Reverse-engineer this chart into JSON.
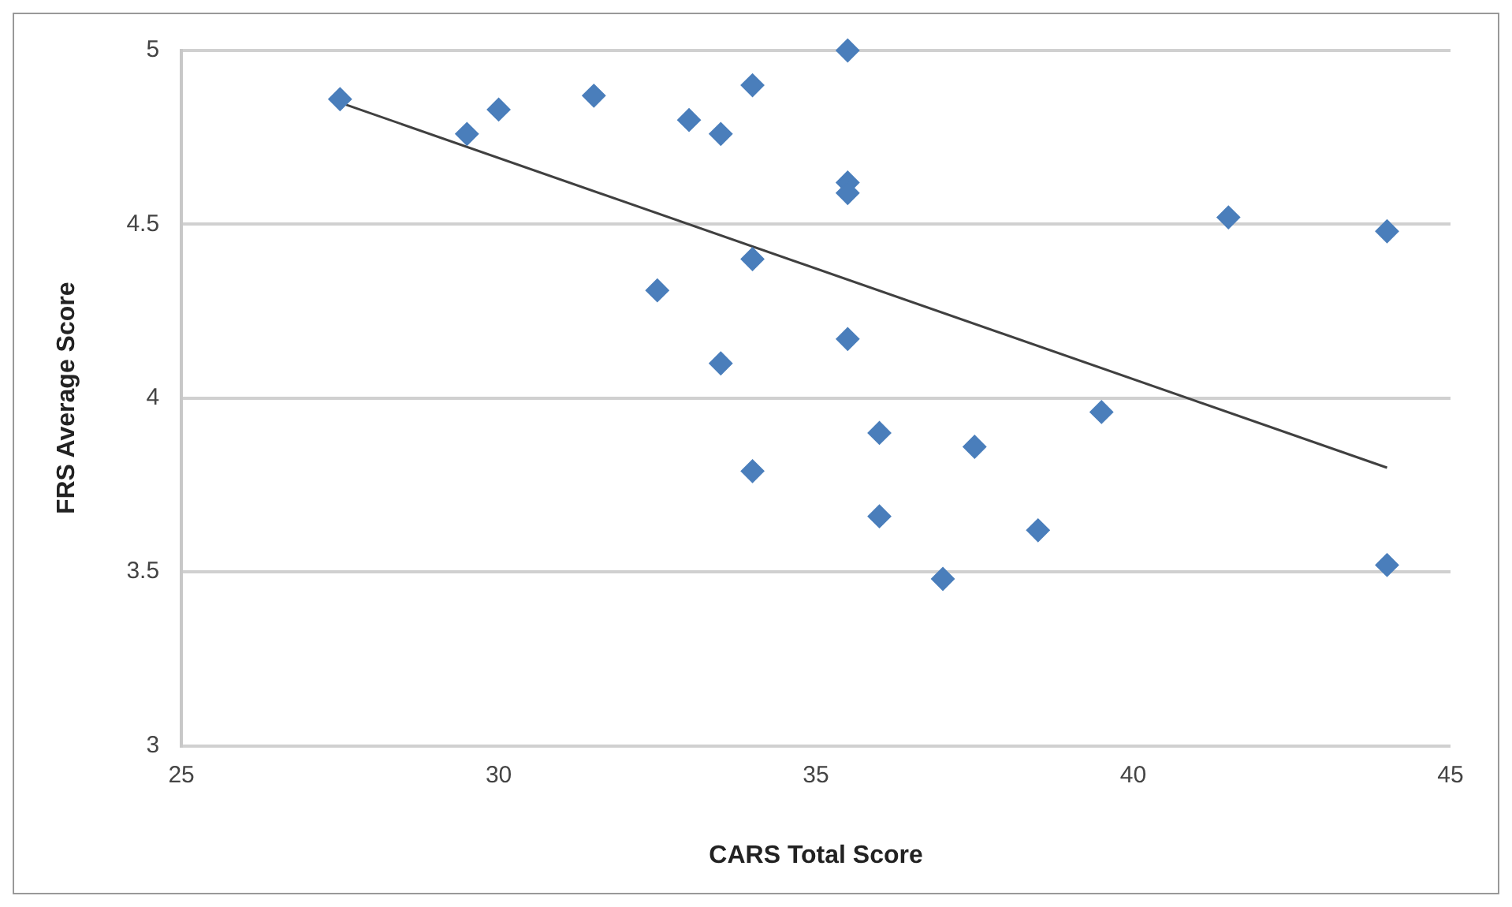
{
  "chart_data": {
    "type": "scatter",
    "xlabel": "CARS Total Score",
    "ylabel": "FRS Average Score",
    "xlim": [
      25,
      45
    ],
    "xticks": [
      25,
      30,
      35,
      40,
      45
    ],
    "ylim": [
      3,
      5
    ],
    "yticks": [
      3,
      3.5,
      4,
      4.5,
      5
    ],
    "grid": "y",
    "legend": false,
    "marker": "diamond",
    "series": [
      {
        "type": "scatter",
        "color": "#4a7ebb",
        "x": [
          27.5,
          29.5,
          30,
          31.5,
          33,
          33.5,
          34,
          35.5,
          35.5,
          35.5,
          34,
          32.5,
          35.5,
          33.5,
          34,
          36,
          36,
          37,
          37.5,
          38.5,
          39.5,
          41.5,
          44,
          44
        ],
        "values": [
          4.86,
          4.76,
          4.83,
          4.87,
          4.8,
          4.76,
          4.9,
          5,
          4.62,
          4.59,
          4.4,
          4.31,
          4.17,
          4.1,
          3.79,
          3.9,
          3.66,
          3.48,
          3.86,
          3.62,
          3.96,
          4.52,
          4.48,
          3.52
        ]
      },
      {
        "type": "line",
        "color": "#404040",
        "marker": "none",
        "x": [
          27.5,
          44
        ],
        "values": [
          4.85,
          3.8
        ]
      }
    ]
  }
}
